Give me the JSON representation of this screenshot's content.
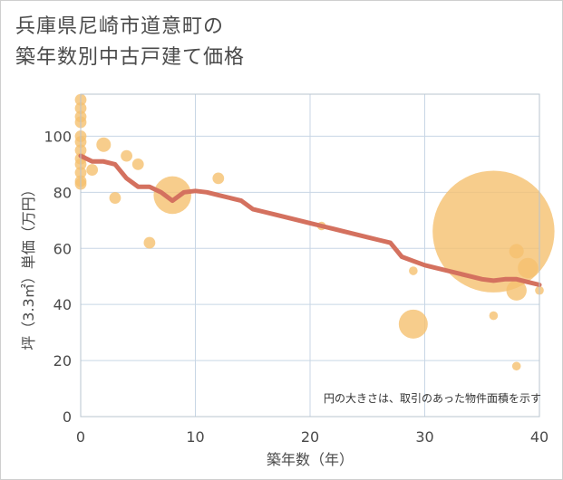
{
  "chart_data": {
    "type": "scatter",
    "title_lines": [
      "兵庫県尼崎市道意町の",
      "築年数別中古戸建て価格"
    ],
    "xlabel": "築年数（年）",
    "ylabel": "坪（3.3㎡）単価（万円）",
    "xlim": [
      0,
      40
    ],
    "ylim": [
      0,
      115
    ],
    "xticks": [
      0,
      10,
      20,
      30,
      40
    ],
    "yticks": [
      0,
      20,
      40,
      60,
      80,
      100
    ],
    "annotation": "円の大きさは、取引のあった物件面積を示す",
    "colors": {
      "bubble": "#f5c06f",
      "trend": "#d4715f",
      "grid": "#c8d6e5",
      "plot_border": "#b8c4cf"
    },
    "points": [
      {
        "x": 0,
        "y": 113,
        "size": 4
      },
      {
        "x": 0,
        "y": 110,
        "size": 4
      },
      {
        "x": 0,
        "y": 107,
        "size": 4
      },
      {
        "x": 0,
        "y": 105,
        "size": 4
      },
      {
        "x": 0,
        "y": 100,
        "size": 4
      },
      {
        "x": 0,
        "y": 98,
        "size": 4
      },
      {
        "x": 0,
        "y": 95,
        "size": 4
      },
      {
        "x": 0,
        "y": 92,
        "size": 4
      },
      {
        "x": 0,
        "y": 90,
        "size": 4
      },
      {
        "x": 0,
        "y": 87,
        "size": 4
      },
      {
        "x": 0,
        "y": 84,
        "size": 4
      },
      {
        "x": 0,
        "y": 83,
        "size": 4
      },
      {
        "x": 1,
        "y": 88,
        "size": 4
      },
      {
        "x": 2,
        "y": 97,
        "size": 5
      },
      {
        "x": 3,
        "y": 78,
        "size": 4
      },
      {
        "x": 4,
        "y": 93,
        "size": 4
      },
      {
        "x": 5,
        "y": 90,
        "size": 4
      },
      {
        "x": 6,
        "y": 62,
        "size": 4
      },
      {
        "x": 8,
        "y": 79,
        "size": 13
      },
      {
        "x": 12,
        "y": 85,
        "size": 4
      },
      {
        "x": 21,
        "y": 68,
        "size": 3
      },
      {
        "x": 29,
        "y": 52,
        "size": 3
      },
      {
        "x": 29,
        "y": 33,
        "size": 10
      },
      {
        "x": 36,
        "y": 66,
        "size": 42
      },
      {
        "x": 36,
        "y": 36,
        "size": 3
      },
      {
        "x": 38,
        "y": 59,
        "size": 5
      },
      {
        "x": 38,
        "y": 45,
        "size": 7
      },
      {
        "x": 38,
        "y": 18,
        "size": 3
      },
      {
        "x": 39,
        "y": 53,
        "size": 7
      },
      {
        "x": 40,
        "y": 45,
        "size": 3
      }
    ],
    "trend": {
      "x": [
        0,
        1,
        2,
        3,
        4,
        5,
        6,
        7,
        8,
        9,
        10,
        11,
        12,
        13,
        14,
        15,
        16,
        17,
        18,
        19,
        20,
        21,
        22,
        23,
        24,
        25,
        26,
        27,
        28,
        29,
        30,
        31,
        32,
        33,
        34,
        35,
        36,
        37,
        38,
        39,
        40
      ],
      "y": [
        93,
        91,
        91,
        90,
        85,
        82,
        82,
        80,
        77,
        80,
        80.5,
        80,
        79,
        78,
        77,
        74,
        73,
        72,
        71,
        70,
        69,
        68,
        67,
        66,
        65,
        64,
        63,
        62,
        57,
        55.5,
        54,
        53,
        52,
        51,
        50,
        49,
        48.5,
        49,
        49,
        48,
        47
      ]
    }
  }
}
